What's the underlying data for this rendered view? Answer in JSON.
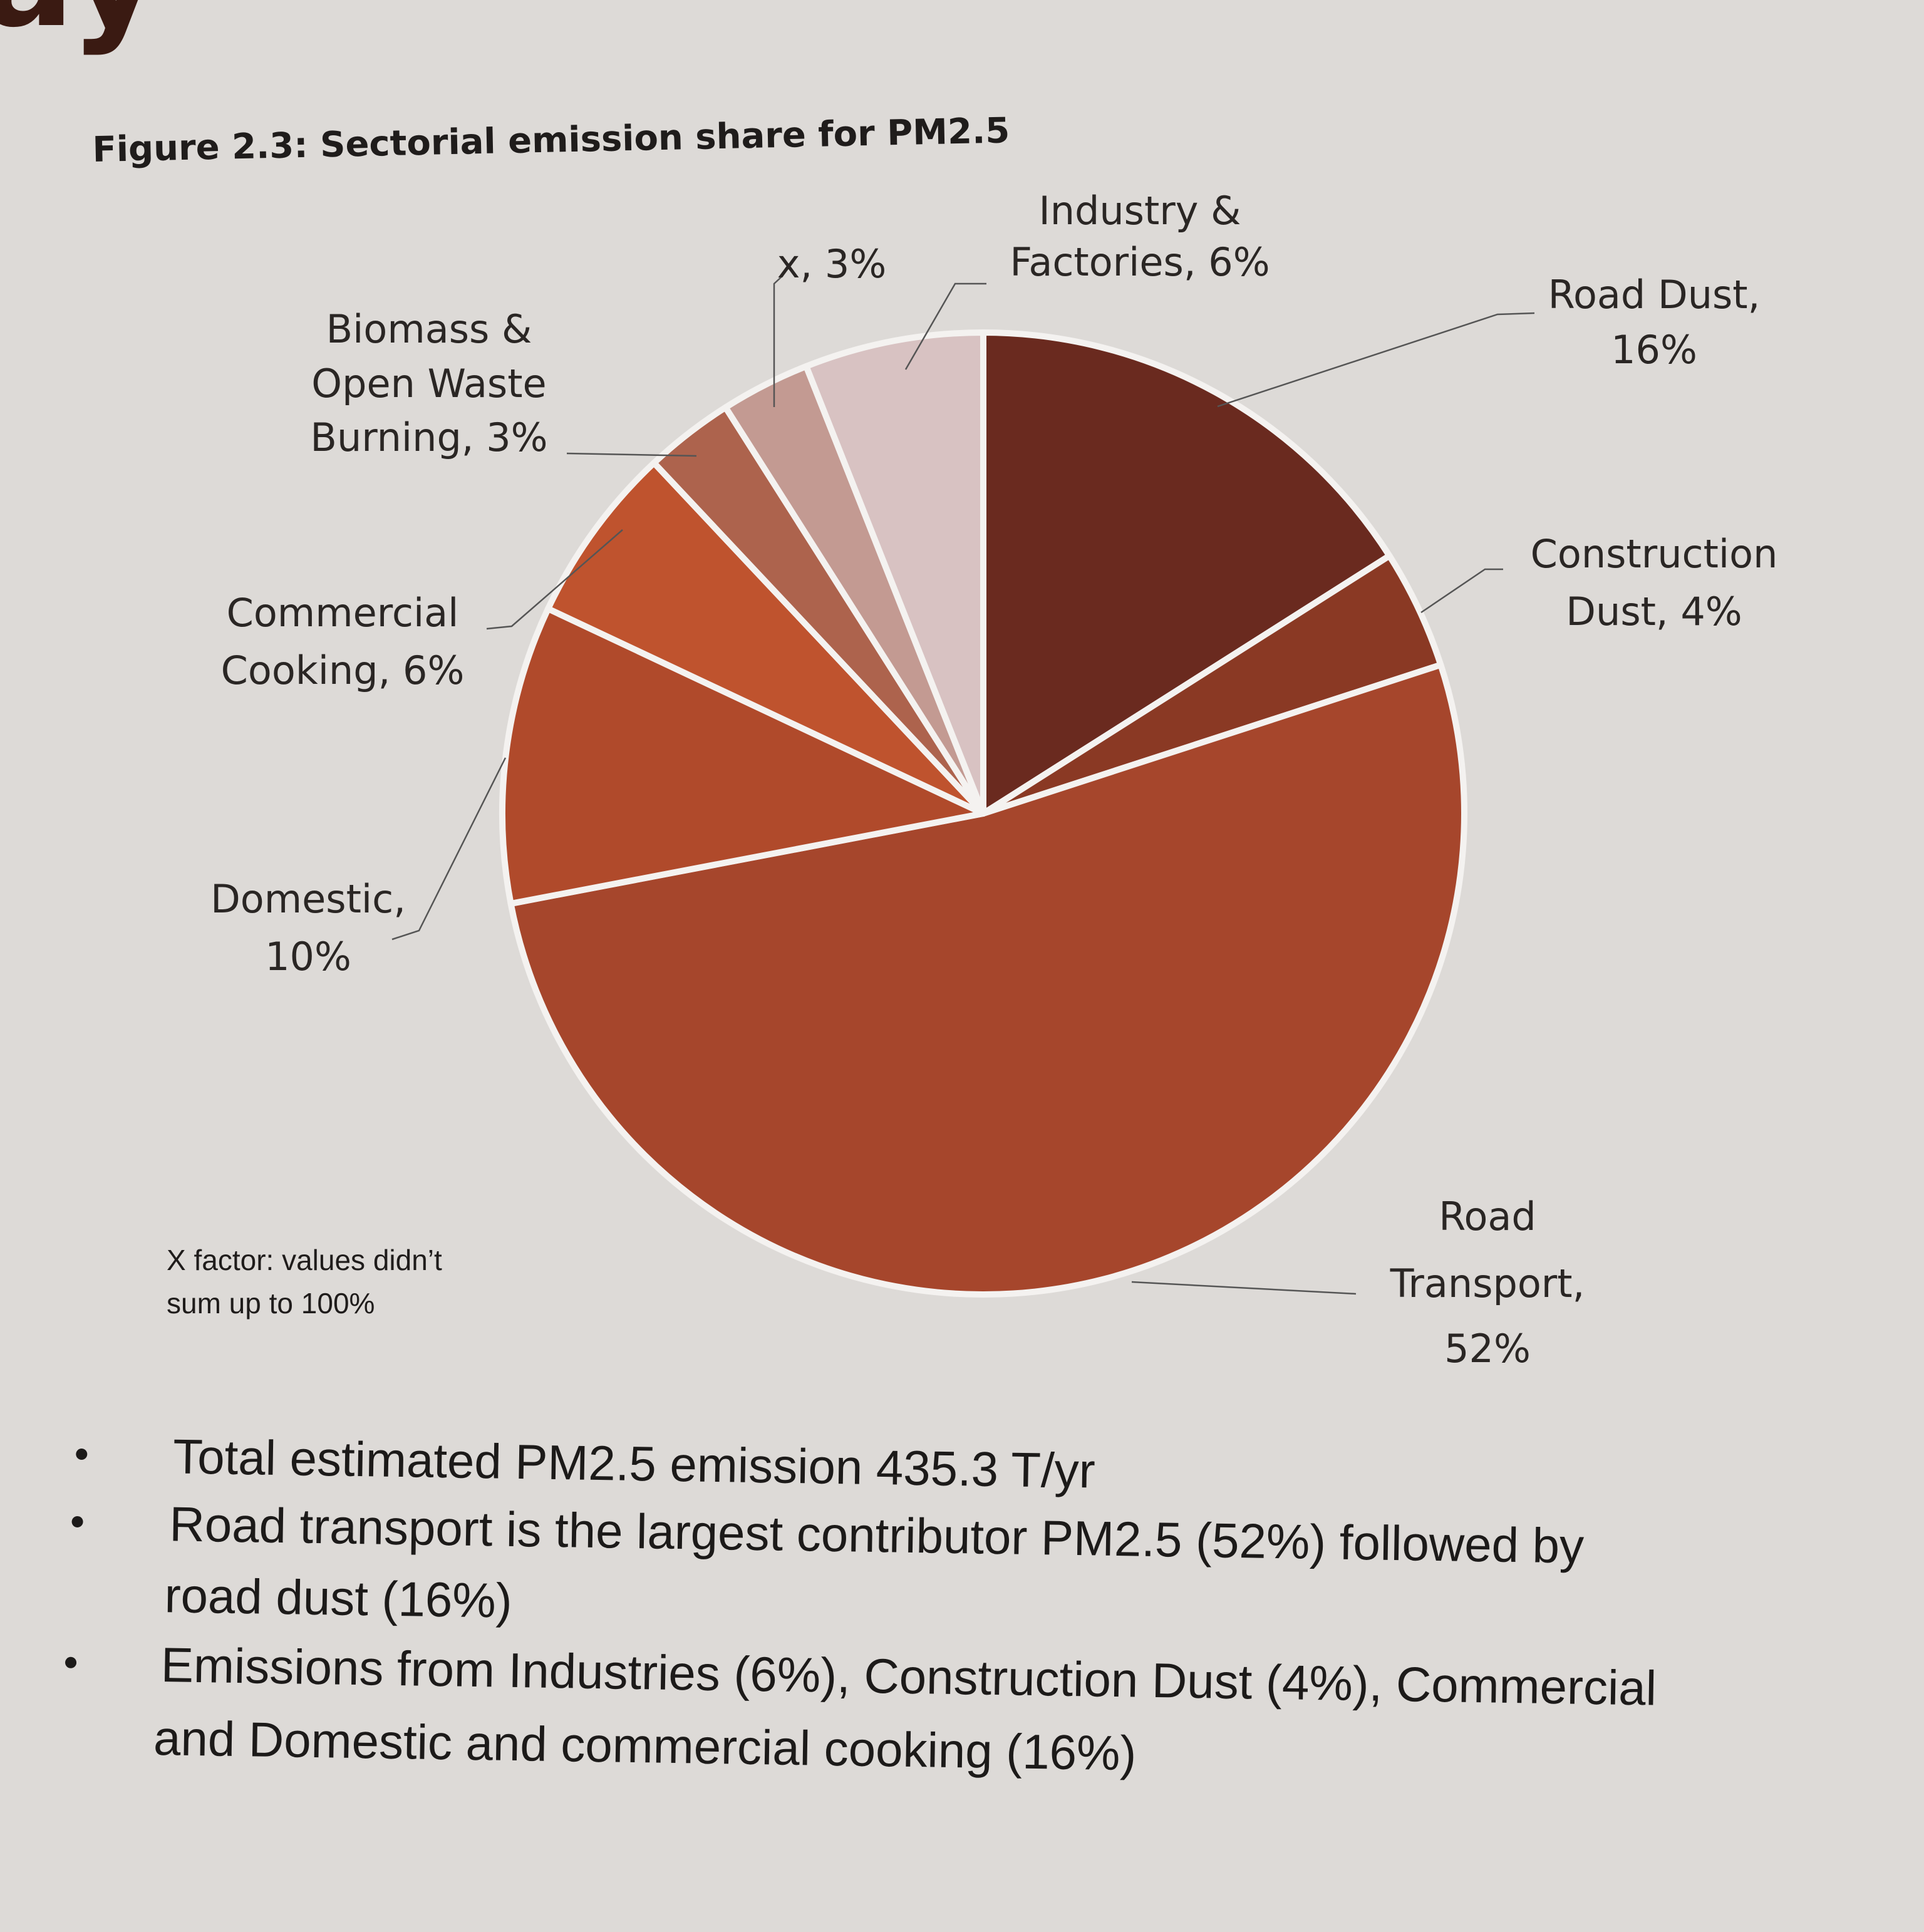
{
  "header_fragment": "ay",
  "chart_data": {
    "type": "pie",
    "title": "Figure 2.3: Sectorial emission share for PM2.5",
    "start": "top, clockwise",
    "slices": [
      {
        "name": "Road Dust",
        "value": 16,
        "label": [
          "Road Dust,",
          "16%"
        ],
        "color": "#6a2a1f"
      },
      {
        "name": "Construction Dust",
        "value": 4,
        "label": [
          "Construction",
          "Dust, 4%"
        ],
        "color": "#8a3924"
      },
      {
        "name": "Road Transport",
        "value": 52,
        "label": [
          "Road",
          "Transport,",
          "52%"
        ],
        "color": "#a6462c"
      },
      {
        "name": "Domestic",
        "value": 10,
        "label": [
          "Domestic,",
          "10%"
        ],
        "color": "#b04a2b"
      },
      {
        "name": "Commercial Cooking",
        "value": 6,
        "label": [
          "Commercial",
          "Cooking, 6%"
        ],
        "color": "#bf532e"
      },
      {
        "name": "Biomass & Open Waste Burning",
        "value": 3,
        "label": [
          "Biomass &",
          "Open Waste",
          "Burning, 3%"
        ],
        "color": "#ad634d"
      },
      {
        "name": "X",
        "value": 3,
        "label": [
          "x, 3%"
        ],
        "color": "#c39a92"
      },
      {
        "name": "Industry & Factories",
        "value": 6,
        "label": [
          "Industry &",
          "Factories, 6%"
        ],
        "color": "#d8c2c2"
      }
    ],
    "note": [
      "X factor: values didn’t",
      "sum up to 100%"
    ]
  },
  "bullets": [
    [
      "Total estimated PM2.5 emission 435.3 T/yr"
    ],
    [
      "Road transport is the largest contributor PM2.5 (52%) followed by",
      "road dust (16%)"
    ],
    [
      "Emissions from Industries (6%), Construction Dust (4%), Commercial",
      "and Domestic and commercial cooking (16%)"
    ]
  ]
}
